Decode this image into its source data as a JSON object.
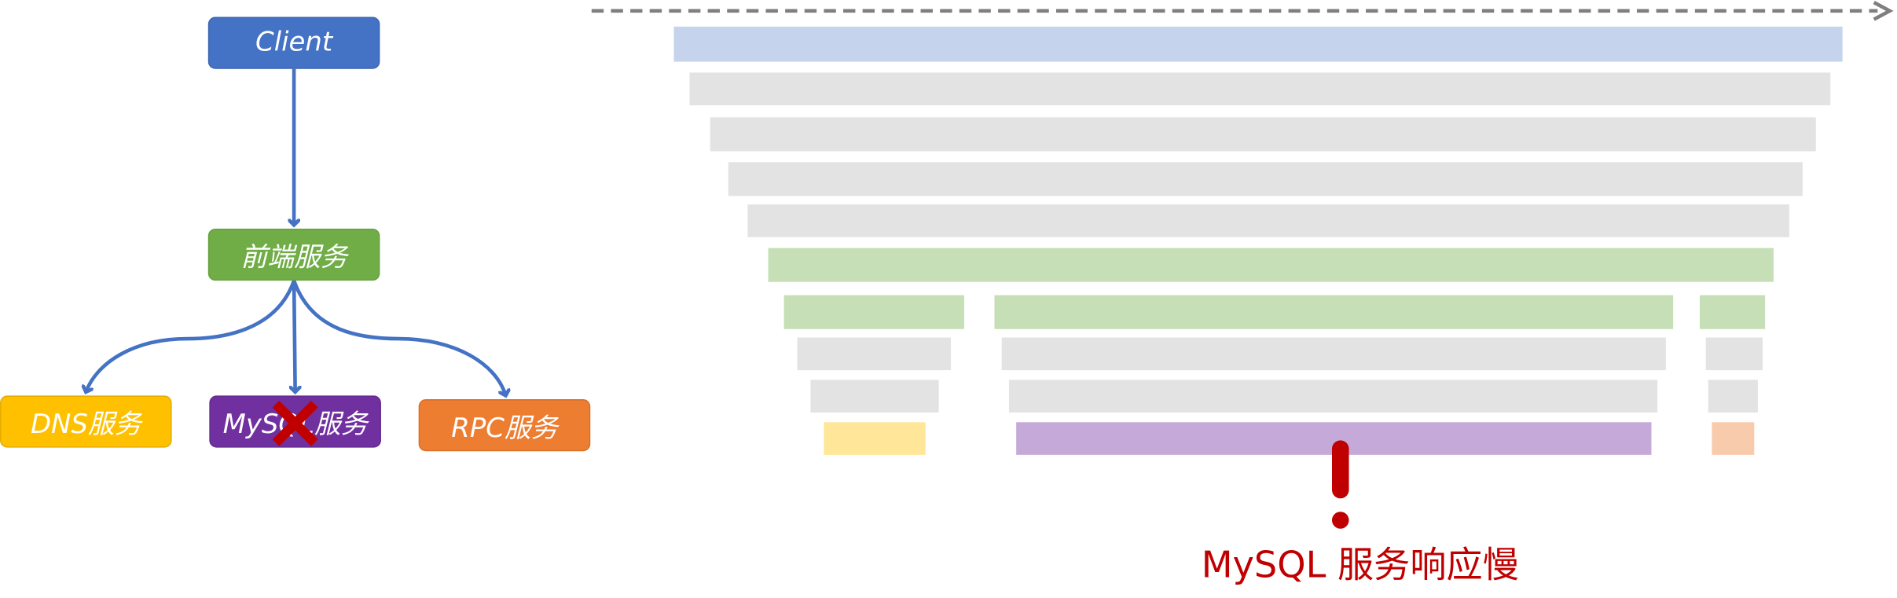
{
  "service_graph": {
    "nodes": [
      {
        "id": "client",
        "label": "Client",
        "color": "#4472c4"
      },
      {
        "id": "frontend",
        "label": "前端服务",
        "color": "#70ad47"
      },
      {
        "id": "dns",
        "label": "DNS服务",
        "color": "#ffc000"
      },
      {
        "id": "mysql",
        "label": "MySQL服务",
        "color": "#7030a0",
        "status": "failed",
        "status_icon": "red-x-icon"
      },
      {
        "id": "rpc",
        "label": "RPC服务",
        "color": "#ed7d31"
      }
    ],
    "edges": [
      {
        "from": "client",
        "to": "frontend"
      },
      {
        "from": "frontend",
        "to": "dns"
      },
      {
        "from": "frontend",
        "to": "mysql"
      },
      {
        "from": "frontend",
        "to": "rpc"
      }
    ],
    "edge_color": "#4472c4"
  },
  "trace": {
    "time_axis_icon": "dashed-arrow-icon",
    "colors": {
      "client": "#c5d4ec",
      "intermediate": "#e3e3e3",
      "frontend": "#c6dfb6",
      "dns": "#ffe699",
      "mysql": "#c5a9d9",
      "rpc": "#f8cbad"
    }
  },
  "alert": {
    "icon": "exclamation-icon",
    "color": "#c00000",
    "text": "MySQL 服务响应慢"
  }
}
